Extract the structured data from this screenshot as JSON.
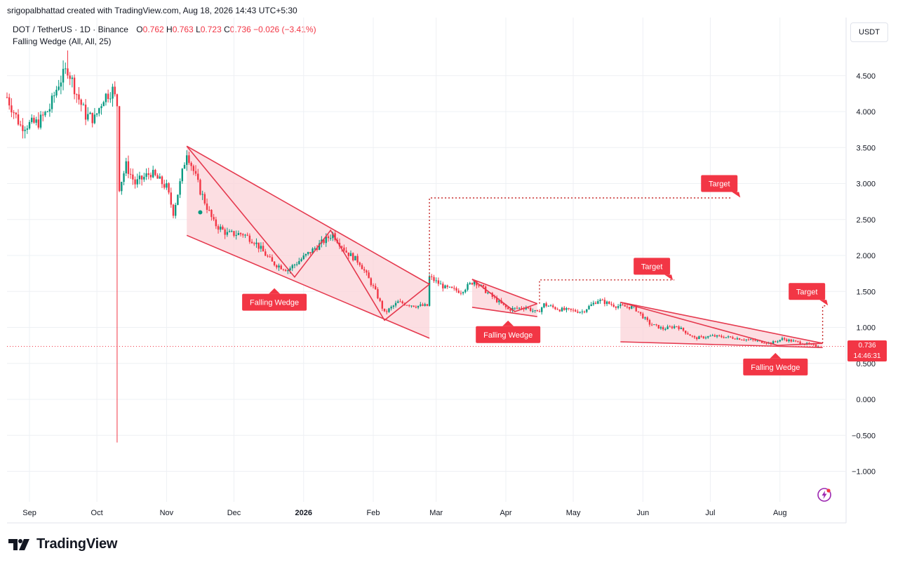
{
  "credit": "srigopalbhattad created with TradingView.com, Aug 18, 2026 14:43 UTC+5:30",
  "symbol": {
    "title": "DOT / TetherUS · 1D · Binance",
    "o_label": "O",
    "o_value": "0.762",
    "h_label": "H",
    "h_value": "0.763",
    "l_label": "L",
    "l_value": "0.723",
    "c_label": "C",
    "c_value": "0.736",
    "change": "−0.026 (−3.41%)"
  },
  "indicator": "Falling Wedge (All, All, 25)",
  "currency_button": "USDT",
  "price_tag": {
    "price": "0.736",
    "countdown": "14:46:31"
  },
  "footer": {
    "brand": "TradingView",
    "logo_icon": "tradingview-logo-icon"
  },
  "colors": {
    "up": "#089981",
    "down": "#f23645",
    "pattern": "#e5394e",
    "pattern_fill": "#fbd3d8"
  },
  "chart_data": {
    "type": "candlestick",
    "symbol": "DOT / TetherUS",
    "interval": "1D",
    "exchange": "Binance",
    "y_axis": {
      "ticks": [
        "4.500",
        "4.000",
        "3.500",
        "3.000",
        "2.500",
        "2.000",
        "1.500",
        "1.000",
        "0.500",
        "0.000",
        "−0.500",
        "−1.000"
      ],
      "tick_values": [
        4.5,
        4.0,
        3.5,
        3.0,
        2.5,
        2.0,
        1.5,
        1.0,
        0.5,
        0.0,
        -0.5,
        -1.0
      ],
      "range": [
        -1.38,
        5.2
      ],
      "grid": true
    },
    "x_axis": {
      "labels": [
        "Sep",
        "Oct",
        "Nov",
        "Dec",
        "2026",
        "Feb",
        "Mar",
        "Apr",
        "May",
        "Jun",
        "Jul",
        "Aug"
      ],
      "label_dates": [
        "2025-09-01",
        "2025-10-01",
        "2025-11-01",
        "2025-12-01",
        "2026-01-01",
        "2026-02-01",
        "2026-03-01",
        "2026-04-01",
        "2026-05-01",
        "2026-06-01",
        "2026-07-01",
        "2026-08-01"
      ],
      "bold": [
        "2026"
      ],
      "range": [
        "2025-08-22",
        "2026-08-27"
      ]
    },
    "price_path": [
      [
        "2025-08-22",
        4.2
      ],
      [
        "2025-08-28",
        3.8
      ],
      [
        "2025-09-05",
        3.85
      ],
      [
        "2025-09-10",
        4.05
      ],
      [
        "2025-09-14",
        4.4
      ],
      [
        "2025-09-18",
        4.6
      ],
      [
        "2025-09-22",
        4.25
      ],
      [
        "2025-09-26",
        3.95
      ],
      [
        "2025-09-30",
        3.9
      ],
      [
        "2025-10-04",
        4.2
      ],
      [
        "2025-10-08",
        4.3
      ],
      [
        "2025-10-10",
        4.1
      ],
      [
        "2025-10-11",
        2.95
      ],
      [
        "2025-10-14",
        3.25
      ],
      [
        "2025-10-18",
        3.0
      ],
      [
        "2025-10-25",
        3.15
      ],
      [
        "2025-11-01",
        2.95
      ],
      [
        "2025-11-04",
        2.6
      ],
      [
        "2025-11-07",
        3.0
      ],
      [
        "2025-11-10",
        3.45
      ],
      [
        "2025-11-16",
        2.9
      ],
      [
        "2025-11-22",
        2.45
      ],
      [
        "2025-11-28",
        2.3
      ],
      [
        "2025-12-05",
        2.3
      ],
      [
        "2025-12-10",
        2.2
      ],
      [
        "2025-12-18",
        1.9
      ],
      [
        "2025-12-25",
        1.8
      ],
      [
        "2026-01-02",
        2.0
      ],
      [
        "2026-01-08",
        2.15
      ],
      [
        "2026-01-14",
        2.3
      ],
      [
        "2026-01-20",
        2.05
      ],
      [
        "2026-01-26",
        1.9
      ],
      [
        "2026-02-02",
        1.5
      ],
      [
        "2026-02-06",
        1.2
      ],
      [
        "2026-02-12",
        1.35
      ],
      [
        "2026-02-20",
        1.3
      ],
      [
        "2026-02-25",
        1.3
      ],
      [
        "2026-02-26",
        1.7
      ],
      [
        "2026-03-05",
        1.55
      ],
      [
        "2026-03-12",
        1.5
      ],
      [
        "2026-03-18",
        1.65
      ],
      [
        "2026-03-25",
        1.45
      ],
      [
        "2026-04-02",
        1.25
      ],
      [
        "2026-04-10",
        1.28
      ],
      [
        "2026-04-15",
        1.2
      ],
      [
        "2026-04-18",
        1.32
      ],
      [
        "2026-04-25",
        1.25
      ],
      [
        "2026-05-05",
        1.22
      ],
      [
        "2026-05-12",
        1.38
      ],
      [
        "2026-05-20",
        1.3
      ],
      [
        "2026-05-28",
        1.28
      ],
      [
        "2026-06-04",
        1.05
      ],
      [
        "2026-06-10",
        0.98
      ],
      [
        "2026-06-16",
        1.02
      ],
      [
        "2026-06-24",
        0.85
      ],
      [
        "2026-07-02",
        0.88
      ],
      [
        "2026-07-10",
        0.86
      ],
      [
        "2026-07-20",
        0.82
      ],
      [
        "2026-07-28",
        0.78
      ],
      [
        "2026-08-02",
        0.84
      ],
      [
        "2026-08-08",
        0.8
      ],
      [
        "2026-08-14",
        0.76
      ],
      [
        "2026-08-18",
        0.736
      ]
    ],
    "last_price": 0.736,
    "patterns": [
      {
        "label": "Falling Wedge",
        "upper": [
          [
            "2025-11-10",
            3.52
          ],
          [
            "2026-02-26",
            1.6
          ]
        ],
        "lower": [
          [
            "2025-11-10",
            2.28
          ],
          [
            "2026-02-26",
            0.85
          ]
        ],
        "zigzag": [
          [
            "2025-11-10",
            3.52
          ],
          [
            "2025-12-28",
            1.7
          ],
          [
            "2026-01-13",
            2.35
          ],
          [
            "2026-02-06",
            1.1
          ],
          [
            "2026-02-26",
            1.6
          ]
        ],
        "label_pos": [
          "2025-12-19",
          1.35
        ],
        "target_label_pos": [
          "2026-07-05",
          3.0
        ],
        "target_line": [
          [
            "2026-02-26",
            2.8
          ],
          [
            "2026-07-10",
            2.8
          ]
        ]
      },
      {
        "label": "Falling Wedge",
        "upper": [
          [
            "2026-03-17",
            1.67
          ],
          [
            "2026-04-15",
            1.33
          ]
        ],
        "lower": [
          [
            "2026-03-17",
            1.28
          ],
          [
            "2026-04-15",
            1.15
          ]
        ],
        "zigzag": [
          [
            "2026-03-17",
            1.67
          ],
          [
            "2026-04-05",
            1.22
          ],
          [
            "2026-04-15",
            1.33
          ]
        ],
        "label_pos": [
          "2026-04-02",
          0.9
        ],
        "target_label_pos": [
          "2026-06-05",
          1.85
        ],
        "target_line": [
          [
            "2026-04-16",
            1.66
          ],
          [
            "2026-06-15",
            1.66
          ]
        ]
      },
      {
        "label": "Falling Wedge",
        "upper": [
          [
            "2026-05-22",
            1.35
          ],
          [
            "2026-08-20",
            0.78
          ]
        ],
        "lower": [
          [
            "2026-05-22",
            0.8
          ],
          [
            "2026-08-20",
            0.72
          ]
        ],
        "zigzag": [
          [
            "2026-05-22",
            1.35
          ],
          [
            "2026-07-31",
            0.75
          ],
          [
            "2026-08-20",
            0.78
          ]
        ],
        "label_pos": [
          "2026-07-30",
          0.45
        ],
        "target_label_pos": [
          "2026-08-13",
          1.5
        ],
        "target_line": [
          [
            "2026-08-20",
            1.3
          ],
          [
            "2026-08-22",
            1.3
          ]
        ]
      }
    ]
  }
}
